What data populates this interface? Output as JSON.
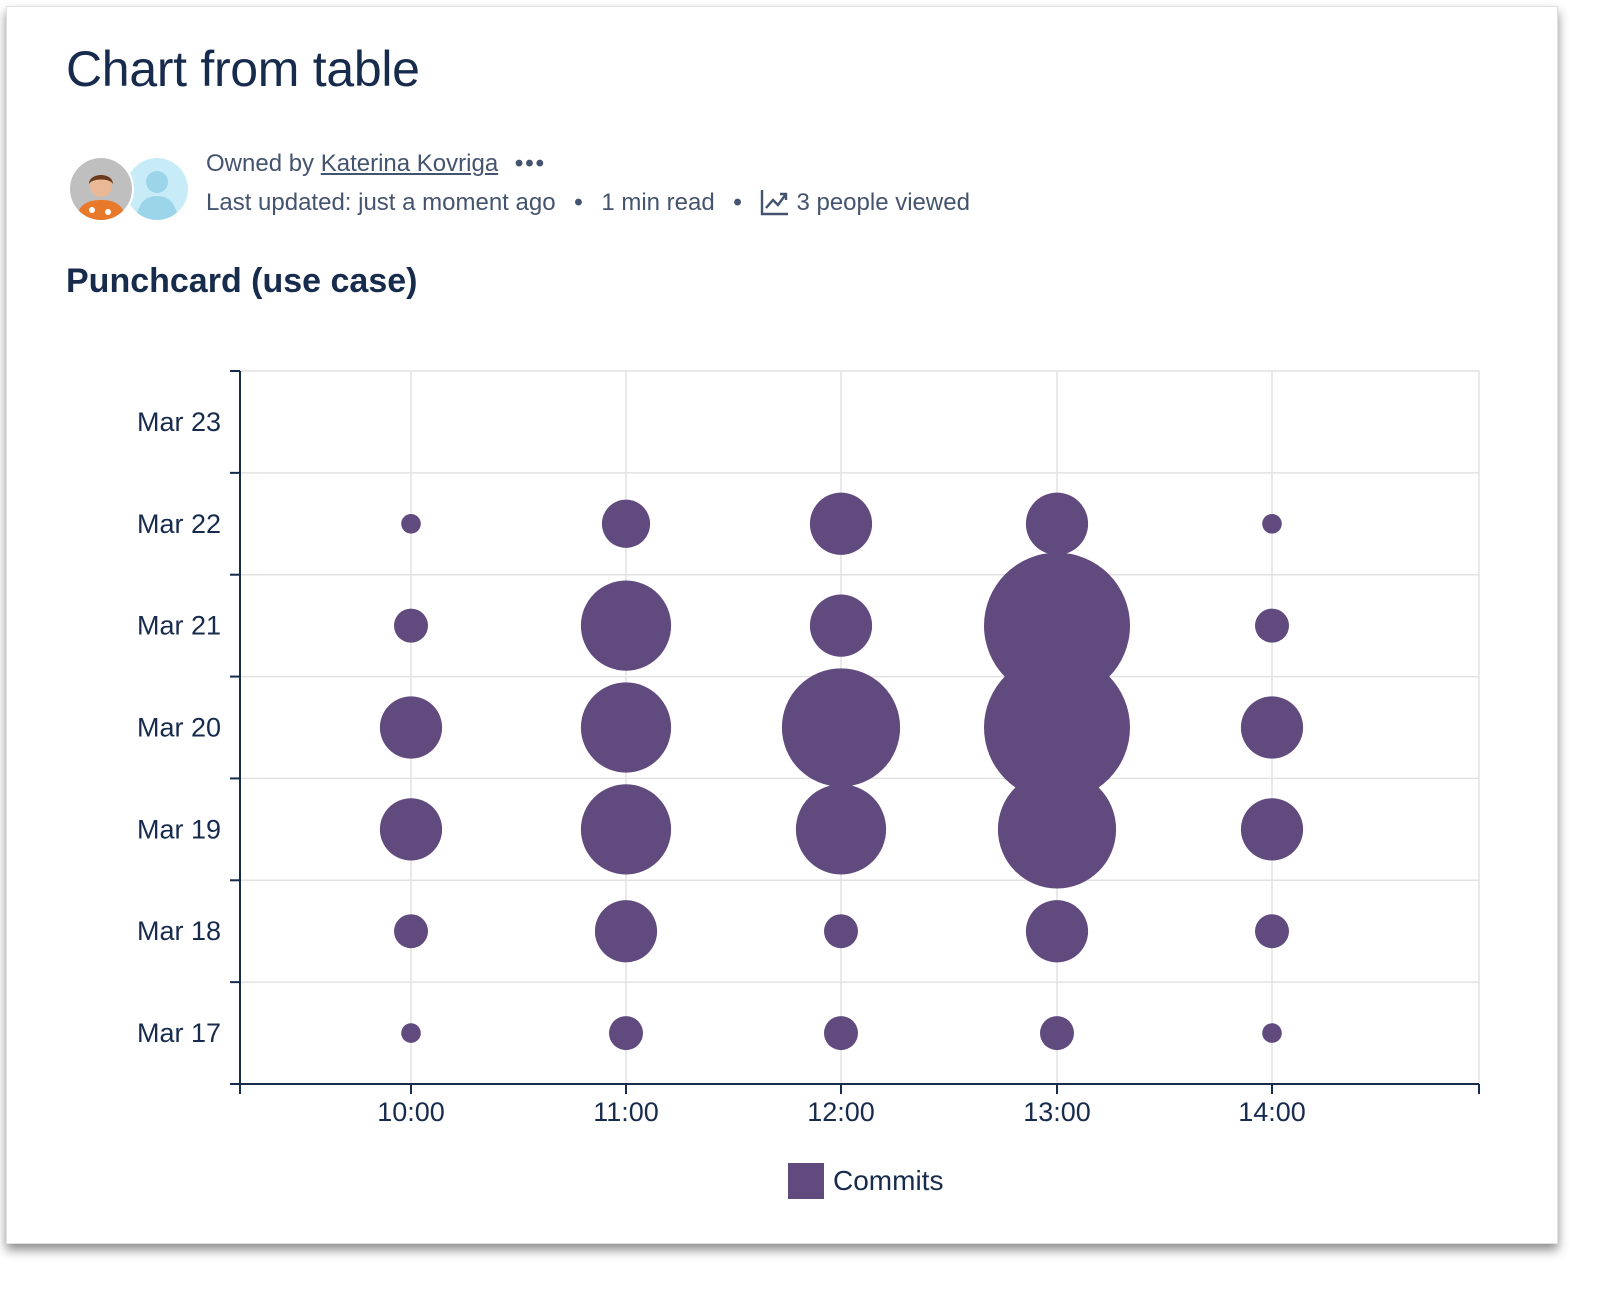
{
  "page": {
    "title": "Chart from table",
    "owned_by_prefix": "Owned by",
    "owner_name": "Katerina Kovriga",
    "more_glyph": "•••",
    "last_updated": "Last updated: just a moment ago",
    "read_time": "1 min read",
    "views": "3 people viewed",
    "bullet": "•",
    "section_heading": "Punchcard (use case)"
  },
  "colors": {
    "bubble": "#604a7e",
    "grid": "#e2e2e2",
    "axis": "#172b4d"
  },
  "chart_data": {
    "type": "scatter",
    "subtype": "bubble",
    "title": "",
    "xlabel": "",
    "ylabel": "",
    "x_categories": [
      "10:00",
      "11:00",
      "12:00",
      "13:00",
      "14:00"
    ],
    "y_categories": [
      "Mar 17",
      "Mar 18",
      "Mar 19",
      "Mar 20",
      "Mar 21",
      "Mar 22",
      "Mar 23"
    ],
    "grid": true,
    "legend": {
      "position": "bottom",
      "entries": [
        "Commits"
      ]
    },
    "series": [
      {
        "name": "Commits",
        "color": "#604a7e",
        "points": [
          {
            "x": "10:00",
            "y": "Mar 22",
            "value": 1
          },
          {
            "x": "11:00",
            "y": "Mar 22",
            "value": 6
          },
          {
            "x": "12:00",
            "y": "Mar 22",
            "value": 10
          },
          {
            "x": "13:00",
            "y": "Mar 22",
            "value": 10
          },
          {
            "x": "14:00",
            "y": "Mar 22",
            "value": 1
          },
          {
            "x": "10:00",
            "y": "Mar 21",
            "value": 3
          },
          {
            "x": "11:00",
            "y": "Mar 21",
            "value": 21
          },
          {
            "x": "12:00",
            "y": "Mar 21",
            "value": 10
          },
          {
            "x": "13:00",
            "y": "Mar 21",
            "value": 55
          },
          {
            "x": "14:00",
            "y": "Mar 21",
            "value": 3
          },
          {
            "x": "10:00",
            "y": "Mar 20",
            "value": 10
          },
          {
            "x": "11:00",
            "y": "Mar 20",
            "value": 21
          },
          {
            "x": "12:00",
            "y": "Mar 20",
            "value": 36
          },
          {
            "x": "13:00",
            "y": "Mar 20",
            "value": 55
          },
          {
            "x": "14:00",
            "y": "Mar 20",
            "value": 10
          },
          {
            "x": "10:00",
            "y": "Mar 19",
            "value": 10
          },
          {
            "x": "11:00",
            "y": "Mar 19",
            "value": 21
          },
          {
            "x": "12:00",
            "y": "Mar 19",
            "value": 21
          },
          {
            "x": "13:00",
            "y": "Mar 19",
            "value": 36
          },
          {
            "x": "14:00",
            "y": "Mar 19",
            "value": 10
          },
          {
            "x": "10:00",
            "y": "Mar 18",
            "value": 3
          },
          {
            "x": "11:00",
            "y": "Mar 18",
            "value": 10
          },
          {
            "x": "12:00",
            "y": "Mar 18",
            "value": 3
          },
          {
            "x": "13:00",
            "y": "Mar 18",
            "value": 10
          },
          {
            "x": "14:00",
            "y": "Mar 18",
            "value": 3
          },
          {
            "x": "10:00",
            "y": "Mar 17",
            "value": 1
          },
          {
            "x": "11:00",
            "y": "Mar 17",
            "value": 3
          },
          {
            "x": "12:00",
            "y": "Mar 17",
            "value": 3
          },
          {
            "x": "13:00",
            "y": "Mar 17",
            "value": 3
          },
          {
            "x": "14:00",
            "y": "Mar 17",
            "value": 1
          }
        ]
      }
    ]
  }
}
